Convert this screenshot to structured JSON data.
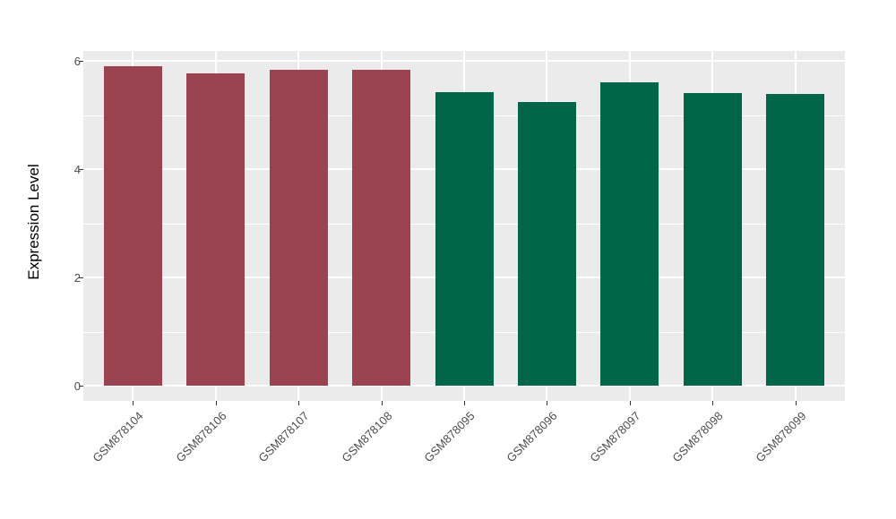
{
  "chart_data": {
    "type": "bar",
    "title": "",
    "xlabel": "",
    "ylabel": "Expression Level",
    "categories": [
      "GSM878104",
      "GSM878106",
      "GSM878107",
      "GSM878108",
      "GSM878095",
      "GSM878096",
      "GSM878097",
      "GSM878098",
      "GSM878099"
    ],
    "values": [
      5.9,
      5.77,
      5.83,
      5.83,
      5.42,
      5.24,
      5.6,
      5.41,
      5.39
    ],
    "bar_colors": [
      "#9C4351",
      "#9C4351",
      "#9C4351",
      "#9C4351",
      "#006647",
      "#006647",
      "#006647",
      "#006647",
      "#006647"
    ],
    "group_colors": {
      "maroon": "#9C4351",
      "green": "#006647"
    },
    "yticks": [
      0,
      2,
      4,
      6
    ],
    "minor_gridline_values": [
      1,
      3,
      5
    ],
    "ylim": [
      0,
      6.2
    ],
    "grid": "on",
    "legend_position": "none",
    "panel_background": "#EBEBEB",
    "gridline_color": "#FFFFFF",
    "axis_text_color": "#4D4D4D",
    "x_label_rotation_deg": 45
  }
}
